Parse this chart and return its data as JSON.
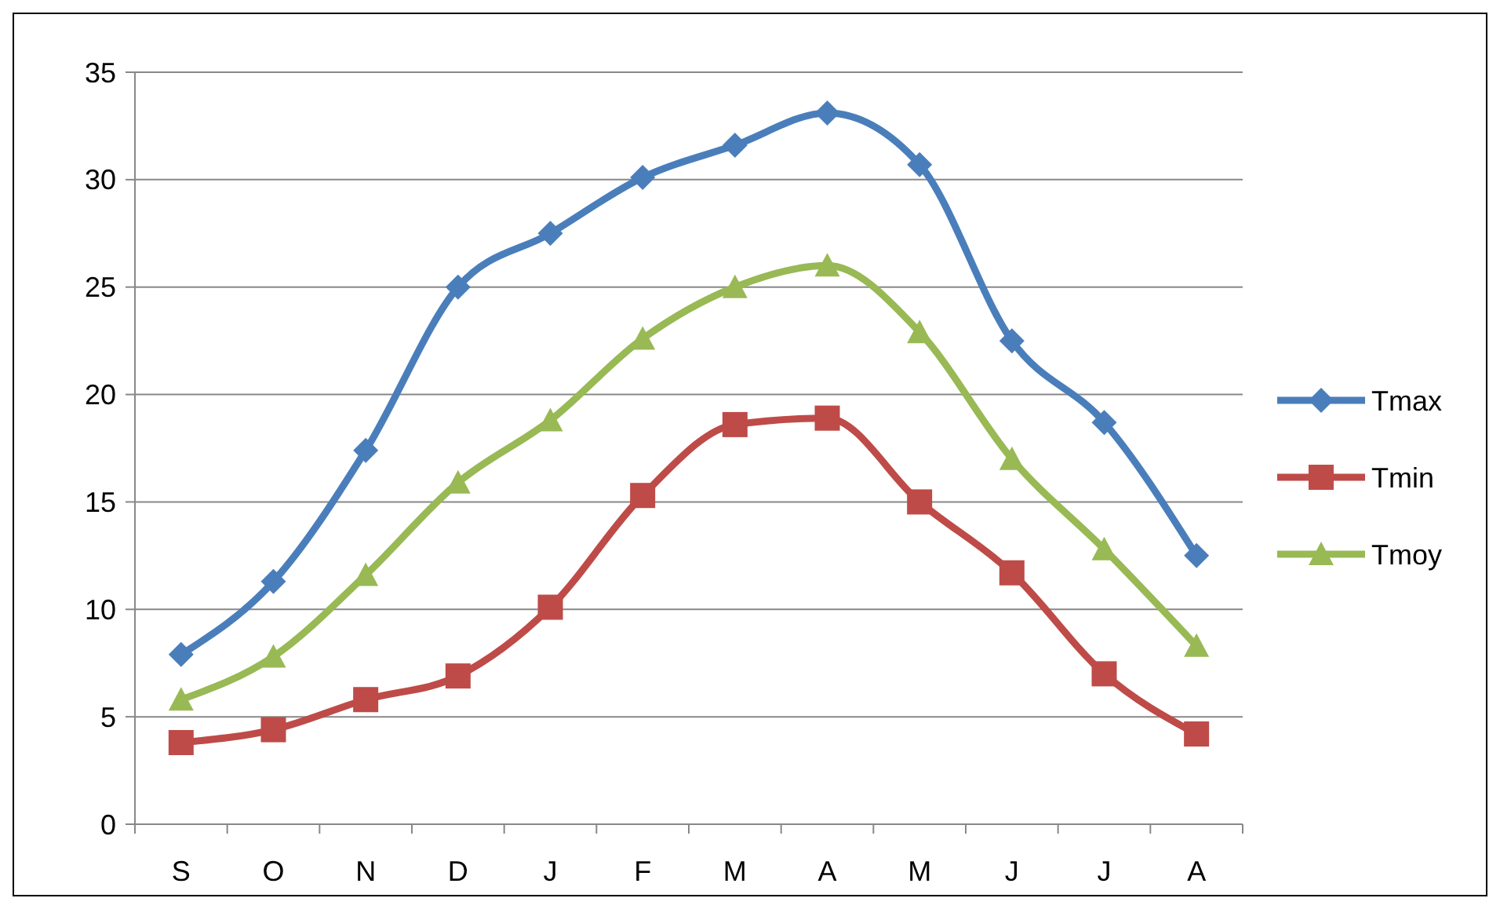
{
  "chart_data": {
    "type": "line",
    "categories": [
      "S",
      "O",
      "N",
      "D",
      "J",
      "F",
      "M",
      "A",
      "M",
      "J",
      "J",
      "A"
    ],
    "series": [
      {
        "name": "Tmax",
        "color": "#4a7ebb",
        "marker": "diamond",
        "values": [
          7.9,
          11.3,
          17.4,
          25.0,
          27.5,
          30.1,
          31.6,
          33.1,
          30.7,
          22.5,
          18.7,
          12.5
        ]
      },
      {
        "name": "Tmin",
        "color": "#be4b48",
        "marker": "square",
        "values": [
          3.8,
          4.4,
          5.8,
          6.9,
          10.1,
          15.3,
          18.6,
          18.9,
          15.0,
          11.7,
          7.0,
          4.2
        ]
      },
      {
        "name": "Tmoy",
        "color": "#98b954",
        "marker": "triangle",
        "values": [
          5.8,
          7.8,
          11.6,
          15.9,
          18.8,
          22.6,
          25.0,
          26.0,
          22.9,
          17.0,
          12.8,
          8.3
        ]
      }
    ],
    "ylim": [
      0,
      35
    ],
    "yticks": [
      0,
      5,
      10,
      15,
      20,
      25,
      30,
      35
    ],
    "grid": "y",
    "legend": "right",
    "line_style": "solid"
  }
}
